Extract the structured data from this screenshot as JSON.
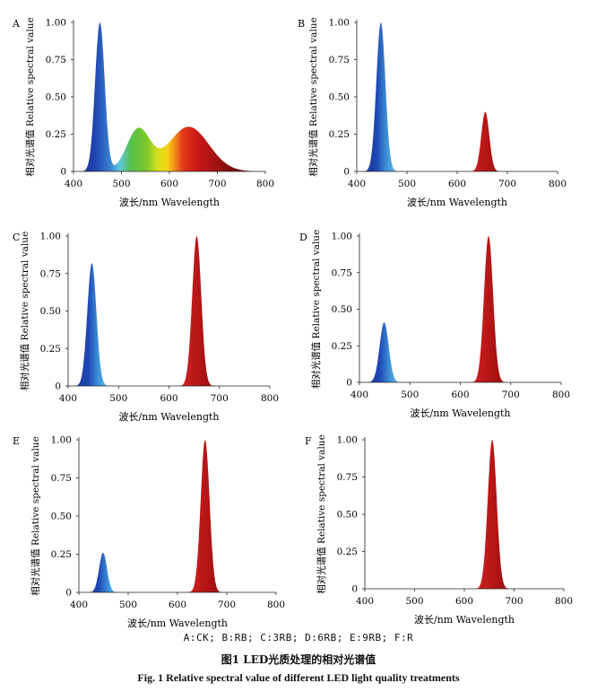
{
  "chart_data": [
    {
      "type": "area",
      "panel_label": "A",
      "ylabel": "相对光谱值 Relative spectral value",
      "xlabel": "波长/nm Wavelength",
      "xlim": [
        400,
        800
      ],
      "ylim": [
        0,
        1
      ],
      "x_ticks": [
        "400",
        "500",
        "600",
        "700",
        "800"
      ],
      "y_ticks": [
        "0",
        "0.25",
        "0.50",
        "0.75",
        "1.00"
      ],
      "spectrum": "white",
      "peaks": [
        {
          "center": 455,
          "height": 1.0,
          "width": 10
        },
        {
          "center": 535,
          "height": 0.28,
          "width": 24
        },
        {
          "center": 640,
          "height": 0.3,
          "width": 42
        }
      ]
    },
    {
      "type": "area",
      "panel_label": "B",
      "ylabel": "相对光谱值 Relative spectral value",
      "xlabel": "波长/nm Wavelength",
      "xlim": [
        400,
        800
      ],
      "ylim": [
        0,
        1
      ],
      "x_ticks": [
        "400",
        "500",
        "600",
        "700",
        "800"
      ],
      "y_ticks": [
        "0",
        "0.25",
        "0.50",
        "0.75",
        "1.00"
      ],
      "spectrum": "blue-red",
      "peaks": [
        {
          "center": 448,
          "height": 1.0,
          "width": 9
        },
        {
          "center": 656,
          "height": 0.4,
          "width": 8
        }
      ]
    },
    {
      "type": "area",
      "panel_label": "C",
      "ylabel": "相对光谱值 Relative spectral value",
      "xlabel": "波长/nm Wavelength",
      "xlim": [
        400,
        800
      ],
      "ylim": [
        0,
        1
      ],
      "x_ticks": [
        "400",
        "500",
        "600",
        "700",
        "800"
      ],
      "y_ticks": [
        "0",
        "0.25",
        "0.50",
        "0.75",
        "1.00"
      ],
      "spectrum": "blue-red",
      "peaks": [
        {
          "center": 447,
          "height": 0.82,
          "width": 9
        },
        {
          "center": 655,
          "height": 1.0,
          "width": 9
        }
      ]
    },
    {
      "type": "area",
      "panel_label": "D",
      "ylabel": "相对光谱值 Relative spectral value",
      "xlabel": "波长/nm Wavelength",
      "xlim": [
        400,
        800
      ],
      "ylim": [
        0,
        1
      ],
      "x_ticks": [
        "400",
        "500",
        "600",
        "700",
        "800"
      ],
      "y_ticks": [
        "0",
        "0.25",
        "0.50",
        "0.75",
        "1.00"
      ],
      "spectrum": "blue-red",
      "peaks": [
        {
          "center": 449,
          "height": 0.41,
          "width": 9
        },
        {
          "center": 656,
          "height": 1.0,
          "width": 9
        }
      ]
    },
    {
      "type": "area",
      "panel_label": "E",
      "ylabel": "相对光谱值 Relative spectral value",
      "xlabel": "波长/nm Wavelength",
      "xlim": [
        400,
        800
      ],
      "ylim": [
        0,
        1
      ],
      "x_ticks": [
        "400",
        "500",
        "600",
        "700",
        "800"
      ],
      "y_ticks": [
        "0",
        "0.25",
        "0.50",
        "0.75",
        "1.00"
      ],
      "spectrum": "blue-red",
      "peaks": [
        {
          "center": 449,
          "height": 0.26,
          "width": 8
        },
        {
          "center": 656,
          "height": 1.0,
          "width": 9
        }
      ]
    },
    {
      "type": "area",
      "panel_label": "F",
      "ylabel": "相对光谱值 Relative spectral value",
      "xlabel": "波长/nm Wavelength",
      "xlim": [
        400,
        800
      ],
      "ylim": [
        0,
        1
      ],
      "x_ticks": [
        "400",
        "500",
        "600",
        "700",
        "800"
      ],
      "y_ticks": [
        "0",
        "0.25",
        "0.50",
        "0.75",
        "1.00"
      ],
      "spectrum": "red",
      "peaks": [
        {
          "center": 656,
          "height": 1.0,
          "width": 9
        }
      ]
    }
  ],
  "captions": {
    "legend": "A:CK; B:RB; C:3RB; D:6RB; E:9RB; F:R",
    "title_zh": "图1   LED光质处理的相对光谱值",
    "title_en": "Fig. 1    Relative spectral value of different LED light quality treatments"
  },
  "colors": {
    "blue": "#1f3fa0",
    "cyan": "#4fc3e0",
    "green": "#6cc12a",
    "yellow": "#f3e21c",
    "red": "#c41a1a",
    "dark_red": "#3a0606"
  }
}
